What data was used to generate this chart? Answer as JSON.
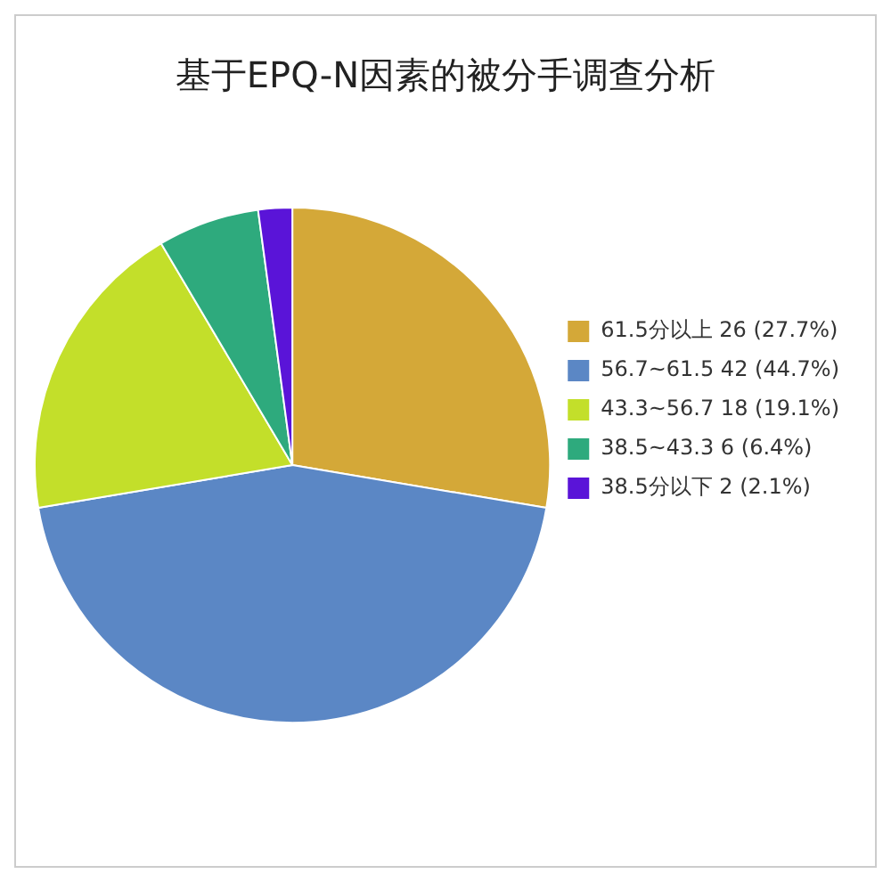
{
  "chart_data": {
    "type": "pie",
    "title": "基于EPQ-N因素的被分手调查分析",
    "categories": [
      "61.5分以上 26 (27.7%)",
      "56.7~61.5 42 (44.7%)",
      "43.3~56.7 18 (19.1%)",
      "38.5~43.3 6 (6.4%)",
      "38.5分以下 2 (2.1%)"
    ],
    "values": [
      26,
      42,
      18,
      6,
      2
    ],
    "colors": [
      "#d4a838",
      "#5b87c5",
      "#c3df2a",
      "#2eaa7d",
      "#5a14d8"
    ],
    "legend": "right"
  }
}
